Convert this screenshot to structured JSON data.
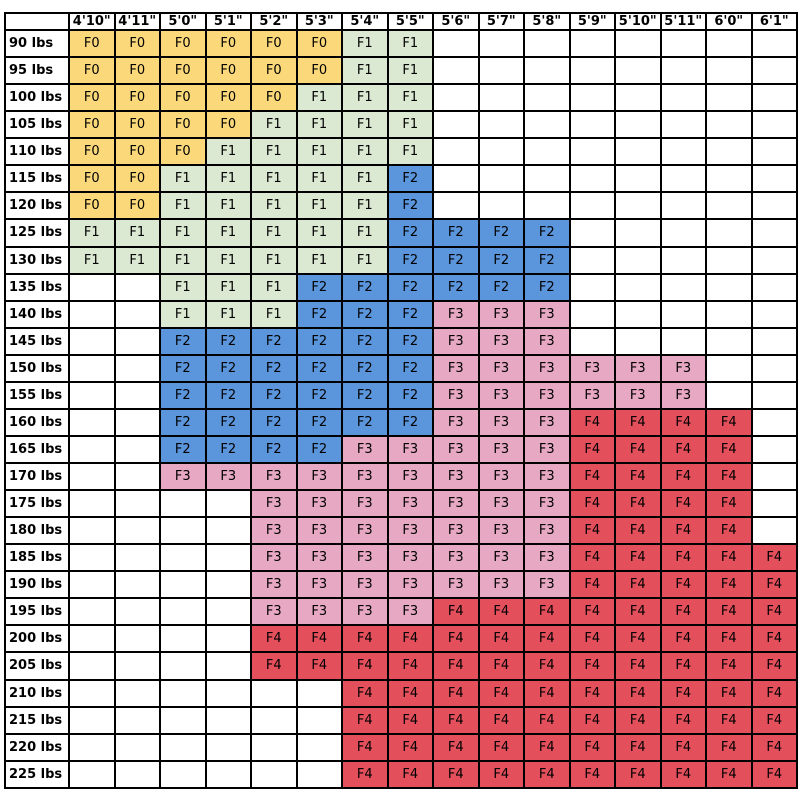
{
  "heights": [
    "4'10\"",
    "4'11\"",
    "5'0\"",
    "5'1\"",
    "5'2\"",
    "5'3\"",
    "5'4\"",
    "5'5\"",
    "5'6\"",
    "5'7\"",
    "5'8\"",
    "5'9\"",
    "5'10\"",
    "5'11\"",
    "6'0\"",
    "6'1\""
  ],
  "size_colors": {
    "F0": "#fbd97b",
    "F1": "#dbe8d2",
    "F2": "#5b95db",
    "F3": "#e7a8c3",
    "F4": "#e3505c"
  },
  "rows": [
    {
      "weight": "90 lbs",
      "cells": [
        "F0",
        "F0",
        "F0",
        "F0",
        "F0",
        "F0",
        "F1",
        "F1",
        "",
        "",
        "",
        "",
        "",
        "",
        "",
        ""
      ]
    },
    {
      "weight": "95 lbs",
      "cells": [
        "F0",
        "F0",
        "F0",
        "F0",
        "F0",
        "F0",
        "F1",
        "F1",
        "",
        "",
        "",
        "",
        "",
        "",
        "",
        ""
      ]
    },
    {
      "weight": "100 lbs",
      "cells": [
        "F0",
        "F0",
        "F0",
        "F0",
        "F0",
        "F1",
        "F1",
        "F1",
        "",
        "",
        "",
        "",
        "",
        "",
        "",
        ""
      ]
    },
    {
      "weight": "105 lbs",
      "cells": [
        "F0",
        "F0",
        "F0",
        "F0",
        "F1",
        "F1",
        "F1",
        "F1",
        "",
        "",
        "",
        "",
        "",
        "",
        "",
        ""
      ]
    },
    {
      "weight": "110 lbs",
      "cells": [
        "F0",
        "F0",
        "F0",
        "F1",
        "F1",
        "F1",
        "F1",
        "F1",
        "",
        "",
        "",
        "",
        "",
        "",
        "",
        ""
      ]
    },
    {
      "weight": "115 lbs",
      "cells": [
        "F0",
        "F0",
        "F1",
        "F1",
        "F1",
        "F1",
        "F1",
        "F2",
        "",
        "",
        "",
        "",
        "",
        "",
        "",
        ""
      ]
    },
    {
      "weight": "120 lbs",
      "cells": [
        "F0",
        "F0",
        "F1",
        "F1",
        "F1",
        "F1",
        "F1",
        "F2",
        "",
        "",
        "",
        "",
        "",
        "",
        "",
        ""
      ]
    },
    {
      "weight": "125 lbs",
      "cells": [
        "F1",
        "F1",
        "F1",
        "F1",
        "F1",
        "F1",
        "F1",
        "F2",
        "F2",
        "F2",
        "F2",
        "",
        "",
        "",
        "",
        ""
      ]
    },
    {
      "weight": "130 lbs",
      "cells": [
        "F1",
        "F1",
        "F1",
        "F1",
        "F1",
        "F1",
        "F1",
        "F2",
        "F2",
        "F2",
        "F2",
        "",
        "",
        "",
        "",
        ""
      ]
    },
    {
      "weight": "135 lbs",
      "cells": [
        "",
        "",
        "F1",
        "F1",
        "F1",
        "F2",
        "F2",
        "F2",
        "F2",
        "F2",
        "F2",
        "",
        "",
        "",
        "",
        ""
      ]
    },
    {
      "weight": "140 lbs",
      "cells": [
        "",
        "",
        "F1",
        "F1",
        "F1",
        "F2",
        "F2",
        "F2",
        "F3",
        "F3",
        "F3",
        "",
        "",
        "",
        "",
        ""
      ]
    },
    {
      "weight": "145 lbs",
      "cells": [
        "",
        "",
        "F2",
        "F2",
        "F2",
        "F2",
        "F2",
        "F2",
        "F3",
        "F3",
        "F3",
        "",
        "",
        "",
        "",
        ""
      ]
    },
    {
      "weight": "150 lbs",
      "cells": [
        "",
        "",
        "F2",
        "F2",
        "F2",
        "F2",
        "F2",
        "F2",
        "F3",
        "F3",
        "F3",
        "F3",
        "F3",
        "F3",
        "",
        ""
      ]
    },
    {
      "weight": "155 lbs",
      "cells": [
        "",
        "",
        "F2",
        "F2",
        "F2",
        "F2",
        "F2",
        "F2",
        "F3",
        "F3",
        "F3",
        "F3",
        "F3",
        "F3",
        "",
        ""
      ]
    },
    {
      "weight": "160 lbs",
      "cells": [
        "",
        "",
        "F2",
        "F2",
        "F2",
        "F2",
        "F2",
        "F2",
        "F3",
        "F3",
        "F3",
        "F4",
        "F4",
        "F4",
        "F4",
        ""
      ]
    },
    {
      "weight": "165 lbs",
      "cells": [
        "",
        "",
        "F2",
        "F2",
        "F2",
        "F2",
        "F3",
        "F3",
        "F3",
        "F3",
        "F3",
        "F4",
        "F4",
        "F4",
        "F4",
        ""
      ]
    },
    {
      "weight": "170 lbs",
      "cells": [
        "",
        "",
        "F3",
        "F3",
        "F3",
        "F3",
        "F3",
        "F3",
        "F3",
        "F3",
        "F3",
        "F4",
        "F4",
        "F4",
        "F4",
        ""
      ]
    },
    {
      "weight": "175 lbs",
      "cells": [
        "",
        "",
        "",
        "",
        "F3",
        "F3",
        "F3",
        "F3",
        "F3",
        "F3",
        "F3",
        "F4",
        "F4",
        "F4",
        "F4",
        ""
      ]
    },
    {
      "weight": "180 lbs",
      "cells": [
        "",
        "",
        "",
        "",
        "F3",
        "F3",
        "F3",
        "F3",
        "F3",
        "F3",
        "F3",
        "F4",
        "F4",
        "F4",
        "F4",
        ""
      ]
    },
    {
      "weight": "185 lbs",
      "cells": [
        "",
        "",
        "",
        "",
        "F3",
        "F3",
        "F3",
        "F3",
        "F3",
        "F3",
        "F3",
        "F4",
        "F4",
        "F4",
        "F4",
        "F4"
      ]
    },
    {
      "weight": "190 lbs",
      "cells": [
        "",
        "",
        "",
        "",
        "F3",
        "F3",
        "F3",
        "F3",
        "F3",
        "F3",
        "F3",
        "F4",
        "F4",
        "F4",
        "F4",
        "F4"
      ]
    },
    {
      "weight": "195 lbs",
      "cells": [
        "",
        "",
        "",
        "",
        "F3",
        "F3",
        "F3",
        "F3",
        "F4",
        "F4",
        "F4",
        "F4",
        "F4",
        "F4",
        "F4",
        "F4"
      ]
    },
    {
      "weight": "200 lbs",
      "cells": [
        "",
        "",
        "",
        "",
        "F4",
        "F4",
        "F4",
        "F4",
        "F4",
        "F4",
        "F4",
        "F4",
        "F4",
        "F4",
        "F4",
        "F4"
      ]
    },
    {
      "weight": "205 lbs",
      "cells": [
        "",
        "",
        "",
        "",
        "F4",
        "F4",
        "F4",
        "F4",
        "F4",
        "F4",
        "F4",
        "F4",
        "F4",
        "F4",
        "F4",
        "F4"
      ]
    },
    {
      "weight": "210 lbs",
      "cells": [
        "",
        "",
        "",
        "",
        "",
        "",
        "F4",
        "F4",
        "F4",
        "F4",
        "F4",
        "F4",
        "F4",
        "F4",
        "F4",
        "F4"
      ]
    },
    {
      "weight": "215 lbs",
      "cells": [
        "",
        "",
        "",
        "",
        "",
        "",
        "F4",
        "F4",
        "F4",
        "F4",
        "F4",
        "F4",
        "F4",
        "F4",
        "F4",
        "F4"
      ]
    },
    {
      "weight": "220 lbs",
      "cells": [
        "",
        "",
        "",
        "",
        "",
        "",
        "F4",
        "F4",
        "F4",
        "F4",
        "F4",
        "F4",
        "F4",
        "F4",
        "F4",
        "F4"
      ]
    },
    {
      "weight": "225 lbs",
      "cells": [
        "",
        "",
        "",
        "",
        "",
        "",
        "F4",
        "F4",
        "F4",
        "F4",
        "F4",
        "F4",
        "F4",
        "F4",
        "F4",
        "F4"
      ]
    }
  ]
}
